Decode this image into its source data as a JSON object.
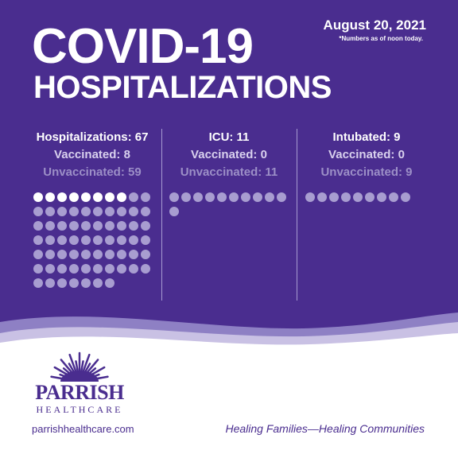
{
  "header": {
    "title_line1": "COVID-19",
    "title_line2": "HOSPITALIZATIONS",
    "date": "August 20, 2021",
    "note": "*Numbers as of noon today."
  },
  "stats": [
    {
      "line1": "Hospitalizations: 67",
      "line2": "Vaccinated: 8",
      "line3": "Unvaccinated: 59",
      "total": 67,
      "vaccinated": 8,
      "unvaccinated": 59
    },
    {
      "line1": "ICU: 11",
      "line2": "Vaccinated: 0",
      "line3": "Unvaccinated: 11",
      "total": 11,
      "vaccinated": 0,
      "unvaccinated": 11
    },
    {
      "line1": "Intubated: 9",
      "line2": "Vaccinated: 0",
      "line3": "Unvaccinated: 9",
      "total": 9,
      "vaccinated": 0,
      "unvaccinated": 9
    }
  ],
  "colors": {
    "background": "#4a2d8f",
    "vaccinated_dot": "#ffffff",
    "unvaccinated_dot": "#a89dd0"
  },
  "footer": {
    "brand": "PARRISH",
    "brand_sub": "HEALTHCARE",
    "website": "parrishhealthcare.com",
    "tagline": "Healing Families—Healing Communities"
  }
}
